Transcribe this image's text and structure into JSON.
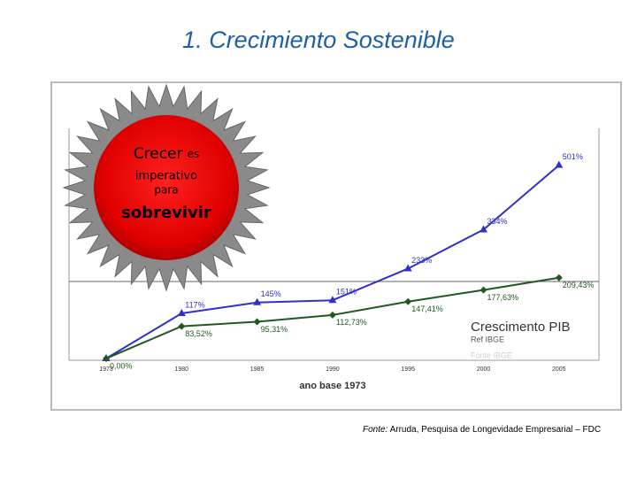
{
  "title": "1. Crecimiento Sostenible",
  "chart_data": {
    "type": "line",
    "categories": [
      "1973",
      "1980",
      "1985",
      "1990",
      "1995",
      "2000",
      "2005"
    ],
    "series": [
      {
        "color": "#3030c8",
        "marker": "triangle",
        "values": [
          0,
          117,
          145,
          151,
          233,
          334,
          501
        ],
        "value_labels": [
          null,
          "117%",
          "145%",
          "151%",
          "233%",
          "334%",
          "501%"
        ]
      },
      {
        "color": "#1e5a1e",
        "marker": "diamond",
        "values": [
          0,
          83.52,
          95.31,
          112.73,
          147.41,
          177.63,
          209.43
        ],
        "value_labels": [
          "0,00%",
          "83,52%",
          "95,31%",
          "112,73%",
          "147,41%",
          "177,63%",
          "209,43%"
        ]
      }
    ],
    "x_label": "ano base 1973",
    "annotations": [
      "Crescimento PIB",
      "Ref IBGE",
      "Fonte IBGE"
    ]
  },
  "callout": {
    "word1": "Crecer",
    "word2": "es",
    "line2": "imperativo",
    "line3": "para",
    "line4": "sobrevivir"
  },
  "footer": {
    "prefix": "Fonte:",
    "text": "Arruda, Pesquisa de Longevidade Empresarial – FDC"
  }
}
